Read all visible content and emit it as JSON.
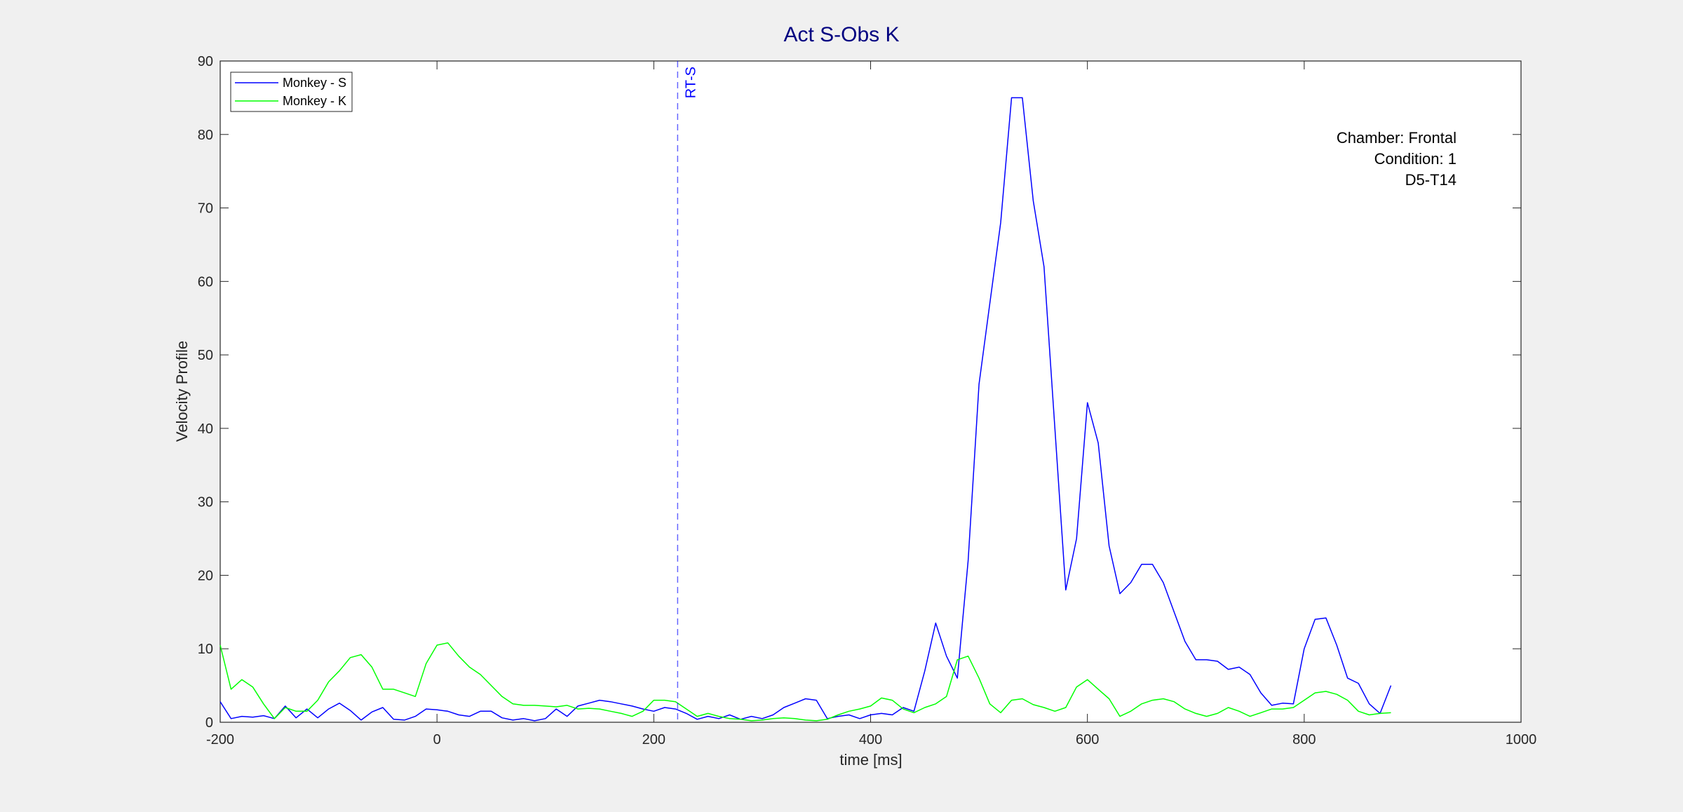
{
  "chart_data": {
    "type": "line",
    "title": "Act S-Obs K",
    "xlabel": "time [ms]",
    "ylabel": "Velocity Profile",
    "x": [
      -200,
      -190,
      -180,
      -170,
      -160,
      -150,
      -140,
      -130,
      -120,
      -110,
      -100,
      -90,
      -80,
      -70,
      -60,
      -50,
      -40,
      -30,
      -20,
      -10,
      0,
      10,
      20,
      30,
      40,
      50,
      60,
      70,
      80,
      90,
      100,
      110,
      120,
      130,
      140,
      150,
      160,
      170,
      180,
      190,
      200,
      210,
      220,
      230,
      240,
      250,
      260,
      270,
      280,
      290,
      300,
      310,
      320,
      330,
      340,
      350,
      360,
      370,
      380,
      390,
      400,
      410,
      420,
      430,
      440,
      450,
      460,
      470,
      480,
      490,
      500,
      510,
      520,
      530,
      540,
      550,
      560,
      570,
      580,
      590,
      600,
      610,
      620,
      630,
      640,
      650,
      660,
      670,
      680,
      690,
      700,
      710,
      720,
      730,
      740,
      750,
      760,
      770,
      780,
      790,
      800,
      810,
      820,
      830,
      840,
      850,
      860,
      870,
      880
    ],
    "series": [
      {
        "name": "Monkey - S",
        "color": "#0000ff",
        "values": [
          2.8,
          0.5,
          0.8,
          0.7,
          0.9,
          0.5,
          2.2,
          0.6,
          1.8,
          0.6,
          1.8,
          2.6,
          1.6,
          0.3,
          1.4,
          2.0,
          0.4,
          0.3,
          0.8,
          1.8,
          1.7,
          1.5,
          1.0,
          0.8,
          1.5,
          1.5,
          0.6,
          0.3,
          0.5,
          0.2,
          0.5,
          1.8,
          0.8,
          2.2,
          2.6,
          3.0,
          2.8,
          2.5,
          2.2,
          1.8,
          1.5,
          2.0,
          1.8,
          1.2,
          0.4,
          0.8,
          0.5,
          1.0,
          0.4,
          0.8,
          0.5,
          1.0,
          2.0,
          2.6,
          3.2,
          3.0,
          0.5,
          0.8,
          1.0,
          0.5,
          1.0,
          1.2,
          1.0,
          2.0,
          1.5,
          7,
          13.5,
          9,
          6,
          22,
          46,
          57,
          68,
          85,
          85,
          71,
          62,
          40,
          18,
          25,
          43.5,
          38,
          24,
          17.5,
          19,
          21.5,
          21.5,
          19,
          15,
          11,
          8.5,
          8.5,
          8.3,
          7.2,
          7.5,
          6.5,
          4,
          2.3,
          2.6,
          2.5,
          10,
          14,
          14.2,
          10.5,
          6,
          5.3,
          2.5,
          1.2,
          5
        ]
      },
      {
        "name": "Monkey - K",
        "color": "#00ff00",
        "values": [
          10.5,
          4.5,
          5.8,
          4.8,
          2.5,
          0.5,
          2.0,
          1.5,
          1.5,
          3.0,
          5.5,
          7.0,
          8.8,
          9.2,
          7.5,
          4.5,
          4.5,
          4.0,
          3.5,
          8.0,
          10.5,
          10.8,
          9.0,
          7.5,
          6.5,
          5.0,
          3.5,
          2.5,
          2.3,
          2.3,
          2.2,
          2.1,
          2.3,
          1.8,
          1.9,
          1.8,
          1.5,
          1.2,
          0.8,
          1.5,
          3.0,
          3.0,
          2.8,
          1.8,
          0.8,
          1.2,
          0.8,
          0.5,
          0.4,
          0.2,
          0.3,
          0.5,
          0.6,
          0.5,
          0.3,
          0.2,
          0.4,
          1.0,
          1.5,
          1.8,
          2.2,
          3.3,
          3.0,
          1.8,
          1.3,
          2.0,
          2.5,
          3.5,
          8.5,
          9.0,
          6.0,
          2.5,
          1.3,
          3.0,
          3.2,
          2.4,
          2.0,
          1.5,
          2.0,
          4.8,
          5.8,
          4.5,
          3.2,
          0.8,
          1.5,
          2.5,
          3.0,
          3.2,
          2.8,
          1.8,
          1.2,
          0.8,
          1.2,
          2.0,
          1.5,
          0.8,
          1.3,
          1.8,
          1.8,
          2.0,
          3.0,
          4.0,
          4.2,
          3.8,
          3.0,
          1.5,
          1.0,
          1.2,
          1.3
        ]
      }
    ],
    "xlim": [
      -200,
      1000
    ],
    "xticks": [
      -200,
      0,
      200,
      400,
      600,
      800,
      1000
    ],
    "ylim": [
      0,
      90
    ],
    "yticks": [
      0,
      10,
      20,
      30,
      40,
      50,
      60,
      70,
      80,
      90
    ],
    "grid": false,
    "legend": "upper left",
    "vline": {
      "x": 222,
      "label": "RT-S",
      "color": "#0000ff"
    },
    "annotation": [
      "Chamber: Frontal",
      "Condition: 1",
      "D5-T14"
    ]
  }
}
